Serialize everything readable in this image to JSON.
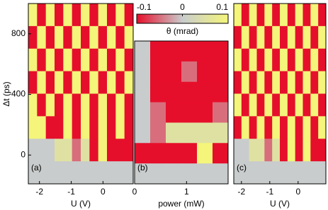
{
  "chart_data": [
    {
      "type": "heatmap",
      "label": "(a)",
      "xlabel": "U (V)",
      "ylabel": "Δt (ps)",
      "xlim": [
        -2.35,
        0.95
      ],
      "xticks": [
        -2,
        -1,
        0
      ],
      "ylim": [
        -190,
        1000
      ],
      "yticks": [
        0,
        400,
        800
      ],
      "z": [
        [
          0.1,
          -0.1,
          0.1,
          -0.1,
          0.1,
          -0.1,
          0.1,
          -0.1,
          0.1,
          -0.1,
          0.1,
          -0.1
        ],
        [
          -0.1,
          0.1,
          -0.1,
          0.1,
          -0.1,
          0.1,
          -0.1,
          0.1,
          -0.1,
          0.1,
          -0.1,
          0.1
        ],
        [
          0.1,
          -0.1,
          0.1,
          -0.1,
          0.1,
          -0.1,
          0.1,
          -0.1,
          0.1,
          -0.1,
          0.1,
          -0.1
        ],
        [
          -0.1,
          0.1,
          -0.1,
          0.1,
          -0.1,
          0.1,
          -0.1,
          0.1,
          -0.1,
          0.1,
          -0.1,
          0.1
        ],
        [
          0.1,
          -0.1,
          0.1,
          -0.1,
          0.1,
          -0.1,
          0.1,
          -0.1,
          0.1,
          -0.1,
          0.1,
          -0.1
        ],
        [
          0.1,
          0.1,
          -0.1,
          -0.1,
          0.1,
          -0.1,
          0.1,
          -0.1,
          0.1,
          -0.1,
          0.1,
          -0.1
        ],
        [
          0,
          0,
          0,
          0.05,
          0.05,
          -0.05,
          0.05,
          -0.1,
          0.1,
          -0.1,
          -0.1,
          -0.1
        ],
        [
          0,
          0,
          0,
          0,
          0,
          0,
          0,
          0,
          0,
          0,
          0,
          0
        ]
      ]
    },
    {
      "type": "heatmap",
      "label": "(b)",
      "xlabel": "power (mW)",
      "xlim": [
        0,
        1.8
      ],
      "xticks": [
        0,
        1
      ],
      "ylim": [
        -190,
        750
      ],
      "z": [
        [
          0,
          -0.1,
          -0.1,
          -0.1,
          -0.1,
          -0.1
        ],
        [
          0,
          -0.1,
          -0.1,
          -0.05,
          -0.1,
          -0.1
        ],
        [
          0,
          -0.1,
          -0.1,
          -0.1,
          -0.1,
          -0.1
        ],
        [
          0,
          -0.05,
          -0.1,
          -0.1,
          -0.1,
          -0.05
        ],
        [
          0,
          -0.05,
          0.05,
          0.05,
          0.05,
          0.05
        ],
        [
          -0.1,
          -0.1,
          -0.1,
          -0.1,
          0.1,
          -0.1
        ],
        [
          0,
          0,
          0,
          0,
          0,
          0
        ]
      ]
    },
    {
      "type": "heatmap",
      "label": "(c)",
      "xlabel": "U (V)",
      "xlim": [
        -2.27,
        0.98
      ],
      "xticks": [
        -2,
        -1,
        0
      ],
      "ylim": [
        -190,
        1000
      ],
      "z": [
        [
          0.1,
          -0.1,
          0.1,
          -0.1,
          0.1,
          -0.1,
          0.1,
          -0.1,
          0.1,
          -0.1,
          0.1,
          -0.1
        ],
        [
          -0.1,
          0.1,
          -0.1,
          0.1,
          -0.1,
          0.1,
          -0.1,
          0.1,
          -0.1,
          0.1,
          -0.1,
          0.1
        ],
        [
          0.1,
          -0.1,
          0.1,
          -0.1,
          0.1,
          -0.1,
          0.1,
          -0.1,
          0.1,
          -0.1,
          0.1,
          -0.1
        ],
        [
          -0.1,
          0.1,
          -0.1,
          0.1,
          -0.1,
          0.1,
          -0.1,
          0.1,
          -0.1,
          0.1,
          -0.1,
          0.1
        ],
        [
          0.1,
          -0.1,
          0.1,
          -0.1,
          0.1,
          -0.1,
          0.1,
          -0.1,
          0.1,
          -0.1,
          0.1,
          -0.1
        ],
        [
          -0.1,
          0.1,
          -0.1,
          0.1,
          -0.1,
          0.1,
          -0.1,
          0.1,
          -0.1,
          0.1,
          -0.1,
          0.1
        ],
        [
          0,
          0,
          0.05,
          0.05,
          -0.05,
          0.05,
          -0.1,
          0.1,
          -0.1,
          0.1,
          -0.1,
          -0.1
        ],
        [
          0,
          0,
          0,
          0,
          0,
          0,
          0,
          0,
          0,
          0,
          0,
          0
        ]
      ]
    }
  ],
  "colorbar": {
    "label": "θ (mrad)",
    "lim": [
      -0.1,
      0.1
    ],
    "ticks": [
      -0.1,
      0,
      0.1
    ],
    "colors": [
      "#e60f2b",
      "#c9cccc",
      "#f4f57a"
    ]
  }
}
